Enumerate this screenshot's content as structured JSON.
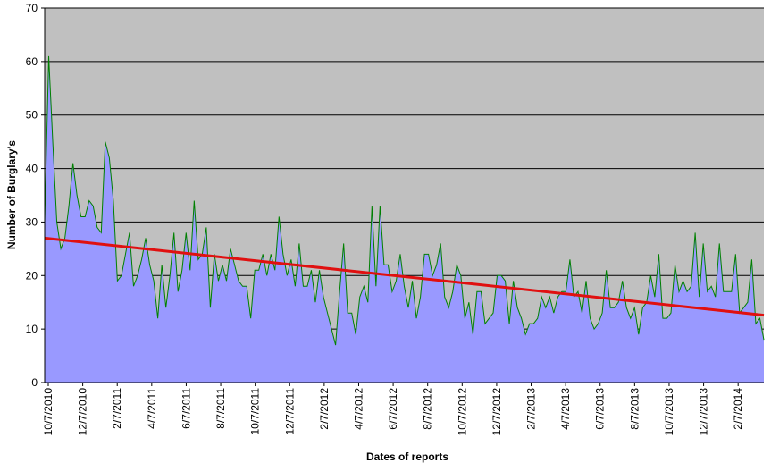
{
  "chart_data": {
    "type": "area",
    "title": "",
    "xlabel": "Dates of reports",
    "ylabel": "Number of Burglary's",
    "ylim": [
      0,
      70
    ],
    "yticks": [
      0,
      10,
      20,
      30,
      40,
      50,
      60,
      70
    ],
    "xtick_labels": [
      "10/7/2010",
      "12/7/2010",
      "2/7/2011",
      "4/7/2011",
      "6/7/2011",
      "8/7/2011",
      "10/7/2011",
      "12/7/2011",
      "2/7/2012",
      "4/7/2012",
      "6/7/2012",
      "8/7/2012",
      "10/7/2012",
      "12/7/2012",
      "2/7/2013",
      "4/7/2013",
      "6/7/2013",
      "8/7/2013",
      "10/7/2013",
      "12/7/2013",
      "2/7/2014"
    ],
    "grid": true,
    "legend": "none",
    "colors": {
      "plot_background": "#c0c0c0",
      "area_fill": "#9999ff",
      "series_line": "#008000",
      "trend_line": "#e01010",
      "gridline": "#000000"
    },
    "series": [
      {
        "kind": "weekly counts",
        "values": [
          30,
          61,
          45,
          30,
          25,
          27,
          33,
          41,
          35,
          31,
          31,
          34,
          33,
          29,
          28,
          45,
          42,
          34,
          19,
          20,
          24,
          28,
          18,
          20,
          23,
          27,
          22,
          19,
          12,
          22,
          14,
          20,
          28,
          17,
          21,
          28,
          21,
          34,
          23,
          24,
          29,
          14,
          24,
          19,
          22,
          19,
          25,
          22,
          19,
          18,
          18,
          12,
          21,
          21,
          24,
          20,
          24,
          21,
          31,
          24,
          20,
          23,
          18,
          26,
          18,
          18,
          21,
          15,
          21,
          16,
          13,
          10,
          7,
          17,
          26,
          13,
          13,
          9,
          16,
          18,
          15,
          33,
          18,
          33,
          22,
          22,
          17,
          19,
          24,
          18,
          14,
          19,
          12,
          16,
          24,
          24,
          20,
          22,
          26,
          16,
          14,
          17,
          22,
          20,
          12,
          15,
          9,
          17,
          17,
          11,
          12,
          13,
          20,
          20,
          19,
          11,
          19,
          14,
          12,
          9,
          11,
          11,
          12,
          16,
          14,
          16,
          13,
          16,
          17,
          17,
          23,
          16,
          17,
          13,
          19,
          12,
          10,
          11,
          13,
          21,
          14,
          14,
          15,
          19,
          14,
          12,
          14,
          9,
          14,
          15,
          20,
          16,
          24,
          12,
          12,
          13,
          22,
          17,
          19,
          17,
          18,
          28,
          16,
          26,
          17,
          18,
          16,
          26,
          17,
          17,
          17,
          24,
          13,
          14,
          15,
          23,
          11,
          12,
          8
        ]
      }
    ],
    "trendline": {
      "start_value": 27,
      "end_value": 12.6
    }
  }
}
